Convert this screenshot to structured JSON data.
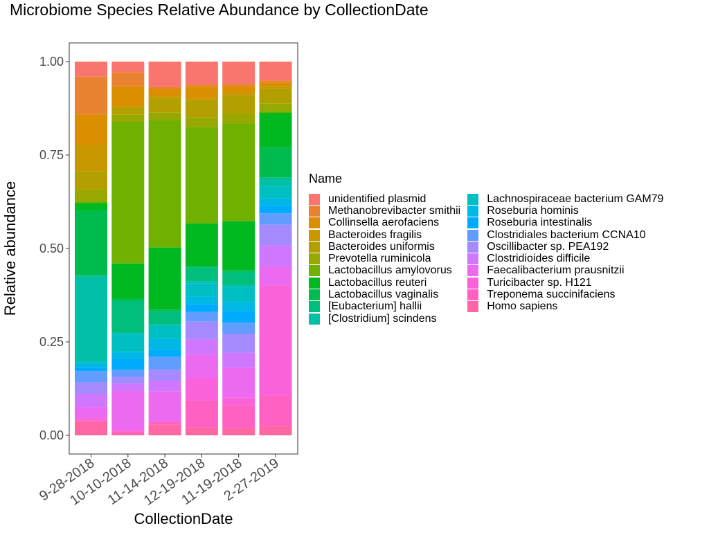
{
  "chart_data": {
    "type": "bar",
    "stacked": true,
    "title": "Microbiome Species Relative Abundance by CollectionDate",
    "xlabel": "CollectionDate",
    "ylabel": "Relative abundance",
    "ylim": [
      0,
      1
    ],
    "yticks": [
      "0.00",
      "0.25",
      "0.50",
      "0.75",
      "1.00"
    ],
    "ytick_values": [
      0,
      0.25,
      0.5,
      0.75,
      1.0
    ],
    "grid": false,
    "legend_title": "Name",
    "legend_position": "right",
    "categories": [
      "9-28-2018",
      "10-10-2018",
      "11-14-2018",
      "12-19-2018",
      "11-19-2018",
      "2-27-2019"
    ],
    "series": [
      {
        "name": "unidentified plasmid",
        "color": "#F8766D",
        "values": [
          0.04,
          0.03,
          0.07,
          0.06,
          0.06,
          0.05
        ]
      },
      {
        "name": "Methanobrevibacter smithii",
        "color": "#EA8331",
        "values": [
          0.1,
          0.04,
          0.005,
          0.005,
          0.005,
          0.005
        ]
      },
      {
        "name": "Collinsella aerofaciens",
        "color": "#DB8E00",
        "values": [
          0.08,
          0.055,
          0.02,
          0.03,
          0.02,
          0.01
        ]
      },
      {
        "name": "Bacteroides fragilis",
        "color": "#C99800",
        "values": [
          0.07,
          0.005,
          0.005,
          0.005,
          0.005,
          0.005
        ]
      },
      {
        "name": "Bacteroides uniformis",
        "color": "#B3A000",
        "values": [
          0.05,
          0.02,
          0.04,
          0.045,
          0.05,
          0.04
        ]
      },
      {
        "name": "Prevotella ruminicola",
        "color": "#97A900",
        "values": [
          0.03,
          0.02,
          0.02,
          0.025,
          0.025,
          0.02
        ]
      },
      {
        "name": "Lactobacillus amylovorus",
        "color": "#6FB000",
        "values": [
          0.005,
          0.4,
          0.35,
          0.25,
          0.26,
          0.005
        ]
      },
      {
        "name": "Lactobacillus reuteri",
        "color": "#00B81F",
        "values": [
          0.02,
          0.1,
          0.17,
          0.11,
          0.13,
          0.09
        ]
      },
      {
        "name": "Lactobacillus vaginalis",
        "color": "#00BB4E",
        "values": [
          0.17,
          0.005,
          0.005,
          0.005,
          0.005,
          0.08
        ]
      },
      {
        "name": "[Eubacterium] hallii",
        "color": "#00BF7D",
        "values": [
          0.005,
          0.09,
          0.035,
          0.035,
          0.035,
          0.005
        ]
      },
      {
        "name": "[Clostridium] scindens",
        "color": "#00C0A8",
        "values": [
          0.225,
          0.005,
          0.005,
          0.005,
          0.005,
          0.02
        ]
      },
      {
        "name": "Lachnospiraceae bacterium GAM79",
        "color": "#00BFC4",
        "values": [
          0.005,
          0.05,
          0.035,
          0.035,
          0.04,
          0.03
        ]
      },
      {
        "name": "Roseburia hominis",
        "color": "#00B8E5",
        "values": [
          0.01,
          0.02,
          0.03,
          0.02,
          0.025,
          0.02
        ]
      },
      {
        "name": "Roseburia intestinalis",
        "color": "#00ABFD",
        "values": [
          0.01,
          0.03,
          0.02,
          0.02,
          0.03,
          0.02
        ]
      },
      {
        "name": "Clostridiales bacterium CCNA10",
        "color": "#619CFF",
        "values": [
          0.03,
          0.02,
          0.035,
          0.025,
          0.03,
          0.03
        ]
      },
      {
        "name": "Oscillibacter sp. PEA192",
        "color": "#A58AFF",
        "values": [
          0.03,
          0.02,
          0.03,
          0.045,
          0.05,
          0.055
        ]
      },
      {
        "name": "Clostridioides difficile",
        "color": "#CF78FF",
        "values": [
          0.035,
          0.02,
          0.03,
          0.04,
          0.04,
          0.055
        ]
      },
      {
        "name": "Faecalibacterium prausnitzii",
        "color": "#EB6AF0",
        "values": [
          0.03,
          0.11,
          0.08,
          0.06,
          0.08,
          0.05
        ]
      },
      {
        "name": "Turicibacter sp. H121",
        "color": "#FA62DB",
        "values": [
          0.005,
          0.005,
          0.005,
          0.06,
          0.02,
          0.29
        ]
      },
      {
        "name": "Treponema succinifaciens",
        "color": "#FF61C3",
        "values": [
          0.005,
          0.005,
          0.005,
          0.07,
          0.06,
          0.08
        ]
      },
      {
        "name": "Homo sapiens",
        "color": "#FF67A4",
        "values": [
          0.035,
          0.005,
          0.03,
          0.02,
          0.02,
          0.025
        ]
      }
    ]
  }
}
